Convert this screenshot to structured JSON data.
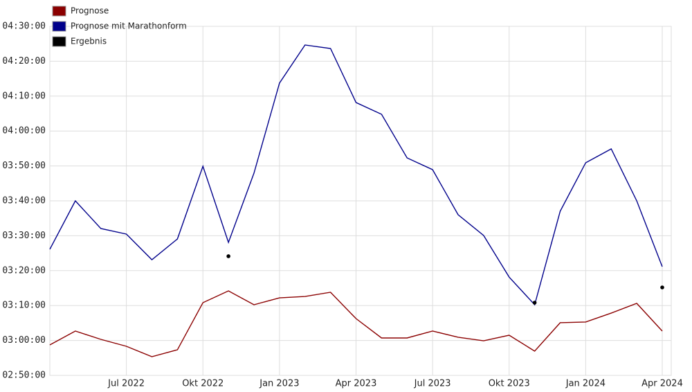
{
  "chart_data": {
    "type": "line",
    "x": [
      "2022-04",
      "2022-05",
      "2022-06",
      "2022-07",
      "2022-08",
      "2022-09",
      "2022-10",
      "2022-11",
      "2022-12",
      "2023-01",
      "2023-02",
      "2023-03",
      "2023-04",
      "2023-05",
      "2023-06",
      "2023-07",
      "2023-08",
      "2023-09",
      "2023-10",
      "2023-11",
      "2023-12",
      "2024-01",
      "2024-02",
      "2024-03",
      "2024-04"
    ],
    "series": [
      {
        "name": "Prognose",
        "color": "#8b0000",
        "values": [
          10724,
          10962,
          10819,
          10700,
          10521,
          10640,
          11450,
          11652,
          11414,
          11533,
          11557,
          11629,
          11176,
          10843,
          10843,
          10962,
          10855,
          10795,
          10890,
          10617,
          11105,
          11117,
          11271,
          11438,
          10962
        ]
      },
      {
        "name": "Prognose mit Marathonform",
        "color": "#00008b",
        "values": [
          12367,
          13200,
          12724,
          12629,
          12188,
          12545,
          13795,
          12486,
          13676,
          15224,
          15879,
          15819,
          14890,
          14688,
          13938,
          13736,
          12962,
          12605,
          11890,
          11414,
          13021,
          13855,
          14093,
          13200,
          12069
        ]
      },
      {
        "name": "Ergebnis",
        "color": "#000000",
        "marker_only": true,
        "x": [
          "2022-11",
          "2023-11",
          "2024-04"
        ],
        "values": [
          12248,
          11450,
          11712
        ]
      }
    ],
    "xlim": [
      "2022-04",
      "2024-04"
    ],
    "xticks": [
      {
        "value": "2022-07",
        "label": "Jul 2022"
      },
      {
        "value": "2022-10",
        "label": "Okt 2022"
      },
      {
        "value": "2023-01",
        "label": "Jan 2023"
      },
      {
        "value": "2023-04",
        "label": "Apr 2023"
      },
      {
        "value": "2023-07",
        "label": "Jul 2023"
      },
      {
        "value": "2023-10",
        "label": "Okt 2023"
      },
      {
        "value": "2024-01",
        "label": "Jan 2024"
      },
      {
        "value": "2024-04",
        "label": "Apr 2024"
      }
    ],
    "ylim": [
      10200,
      16200
    ],
    "yticks": [
      {
        "value": 10200,
        "label": "02:50:00"
      },
      {
        "value": 10800,
        "label": "03:00:00"
      },
      {
        "value": 11400,
        "label": "03:10:00"
      },
      {
        "value": 12000,
        "label": "03:20:00"
      },
      {
        "value": 12600,
        "label": "03:30:00"
      },
      {
        "value": 13200,
        "label": "03:40:00"
      },
      {
        "value": 13800,
        "label": "03:50:00"
      },
      {
        "value": 14400,
        "label": "04:00:00"
      },
      {
        "value": 15000,
        "label": "04:10:00"
      },
      {
        "value": 15600,
        "label": "04:20:00"
      },
      {
        "value": 16200,
        "label": "04:30:00"
      }
    ],
    "grid": true,
    "legend": "top-left"
  }
}
